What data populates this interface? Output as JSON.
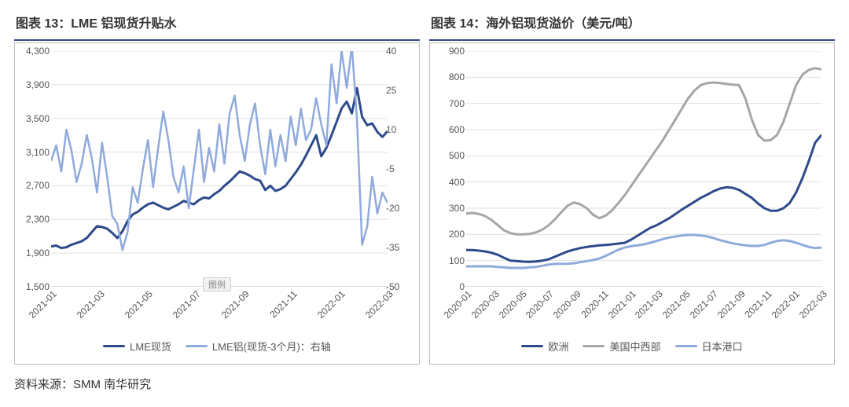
{
  "source_label": "资料来源：SMM 南华研究",
  "legend_badge": "图例",
  "chart_left": {
    "type": "line",
    "title": "图表 13：LME 铝现货升贴水",
    "background_color": "#ffffff",
    "grid_color": "#e0e0e0",
    "axis_color": "#bfbfbf",
    "label_fontsize": 12,
    "y_left": {
      "min": 1500,
      "max": 4300,
      "step": 400,
      "ticks": [
        1500,
        1900,
        2300,
        2700,
        3100,
        3500,
        3900,
        4300
      ]
    },
    "y_right": {
      "min": -50,
      "max": 40,
      "step": 15,
      "ticks": [
        -50,
        -35,
        -20,
        -5,
        10,
        25,
        40
      ]
    },
    "x_labels": [
      "2021-01",
      "2021-03",
      "2021-05",
      "2021-07",
      "2021-09",
      "2021-11",
      "2022-01",
      "2022-03"
    ],
    "series": [
      {
        "name": "LME现货",
        "axis": "left",
        "color": "#2d4a8a",
        "line_width": 3,
        "data": [
          1980,
          1990,
          1960,
          1970,
          2000,
          2020,
          2040,
          2080,
          2150,
          2220,
          2210,
          2190,
          2140,
          2080,
          2160,
          2280,
          2360,
          2390,
          2440,
          2480,
          2500,
          2470,
          2440,
          2420,
          2450,
          2480,
          2520,
          2500,
          2480,
          2530,
          2560,
          2550,
          2600,
          2640,
          2700,
          2750,
          2810,
          2870,
          2850,
          2820,
          2780,
          2760,
          2650,
          2700,
          2640,
          2660,
          2700,
          2780,
          2860,
          2950,
          3060,
          3180,
          3300,
          3050,
          3150,
          3300,
          3460,
          3620,
          3700,
          3560,
          3860,
          3520,
          3420,
          3440,
          3340,
          3280,
          3350
        ]
      },
      {
        "name": "LME铝(现货-3个月)：右轴",
        "axis": "right",
        "color": "#8faadc",
        "line_width": 2.5,
        "data": [
          -2,
          4,
          -6,
          10,
          2,
          -10,
          -3,
          8,
          -1,
          -14,
          5,
          -8,
          -23,
          -26,
          -36,
          -29,
          -12,
          -18,
          -5,
          6,
          -12,
          3,
          17,
          6,
          -8,
          -14,
          -4,
          -20,
          -5,
          10,
          -10,
          3,
          -6,
          12,
          -3,
          16,
          23,
          8,
          -2,
          12,
          20,
          4,
          -7,
          10,
          -4,
          8,
          -2,
          15,
          4,
          18,
          6,
          10,
          22,
          12,
          4,
          35,
          20,
          40,
          26,
          42,
          14,
          -34,
          -27,
          -8,
          -22,
          -14,
          -18
        ]
      }
    ]
  },
  "chart_right": {
    "type": "line",
    "title": "图表 14：海外铝现货溢价（美元/吨）",
    "background_color": "#ffffff",
    "grid_color": "#e0e0e0",
    "axis_color": "#bfbfbf",
    "label_fontsize": 12,
    "y_left": {
      "min": 0,
      "max": 900,
      "step": 100,
      "ticks": [
        0,
        100,
        200,
        300,
        400,
        500,
        600,
        700,
        800,
        900
      ]
    },
    "x_labels": [
      "2020-01",
      "2020-03",
      "2020-05",
      "2020-07",
      "2020-09",
      "2020-11",
      "2021-01",
      "2021-03",
      "2021-05",
      "2021-07",
      "2021-09",
      "2021-11",
      "2022-01",
      "2022-03"
    ],
    "series": [
      {
        "name": "欧洲",
        "color": "#2d4a8a",
        "line_width": 3,
        "data": [
          140,
          140,
          138,
          135,
          130,
          122,
          110,
          100,
          98,
          96,
          95,
          97,
          100,
          105,
          115,
          125,
          135,
          142,
          148,
          152,
          155,
          158,
          160,
          162,
          165,
          168,
          180,
          195,
          210,
          225,
          235,
          248,
          262,
          278,
          295,
          310,
          325,
          340,
          352,
          365,
          375,
          380,
          378,
          370,
          355,
          340,
          318,
          300,
          290,
          290,
          300,
          320,
          360,
          415,
          480,
          550,
          580
        ]
      },
      {
        "name": "美国中西部",
        "color": "#a6a6a6",
        "line_width": 3,
        "data": [
          280,
          282,
          278,
          270,
          255,
          235,
          215,
          205,
          200,
          200,
          202,
          208,
          218,
          235,
          258,
          285,
          310,
          322,
          315,
          300,
          275,
          262,
          272,
          292,
          320,
          350,
          385,
          420,
          455,
          490,
          525,
          560,
          600,
          640,
          680,
          720,
          750,
          770,
          778,
          780,
          778,
          775,
          772,
          770,
          720,
          640,
          580,
          558,
          560,
          580,
          630,
          700,
          770,
          810,
          828,
          835,
          830
        ]
      },
      {
        "name": "日本港口",
        "color": "#8faadc",
        "line_width": 3,
        "data": [
          78,
          78,
          78,
          78,
          78,
          76,
          74,
          72,
          72,
          72,
          74,
          76,
          80,
          85,
          88,
          88,
          88,
          90,
          94,
          98,
          102,
          108,
          118,
          130,
          142,
          150,
          155,
          158,
          162,
          168,
          175,
          182,
          188,
          192,
          196,
          198,
          198,
          196,
          192,
          186,
          178,
          172,
          166,
          162,
          158,
          156,
          156,
          160,
          168,
          175,
          178,
          175,
          168,
          160,
          152,
          148,
          150
        ]
      }
    ]
  }
}
